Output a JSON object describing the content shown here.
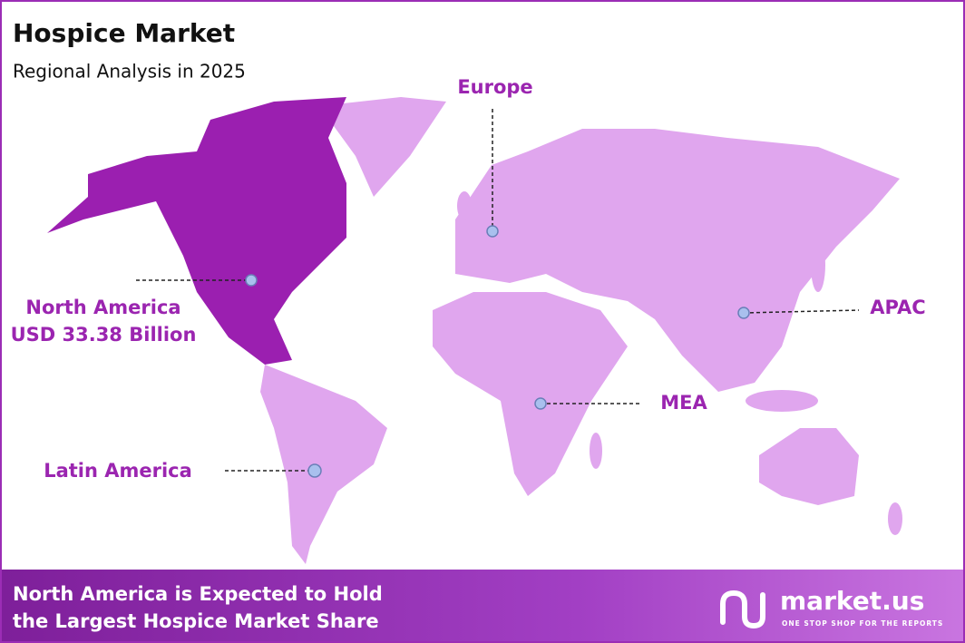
{
  "header": {
    "title": "Hospice Market",
    "subtitle": "Regional Analysis in 2025"
  },
  "regions": [
    {
      "label": "North America",
      "value": "USD 33.38 Billion"
    },
    {
      "label": "Europe"
    },
    {
      "label": "APAC"
    },
    {
      "label": "MEA"
    },
    {
      "label": "Latin America"
    }
  ],
  "footer": {
    "lines": [
      "North America is Expected to Hold",
      "the Largest Hospice Market Share"
    ],
    "logo": {
      "name": "market.us",
      "tagline": "ONE STOP SHOP FOR THE REPORTS"
    }
  }
}
